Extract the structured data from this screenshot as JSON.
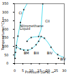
{
  "chart_data": {
    "type": "line",
    "title": "",
    "xlabel": "Pressure (GPa)",
    "ylabel": "Temperature (°C)",
    "xlim": [
      0,
      30
    ],
    "ylim": [
      0,
      350
    ],
    "xticks": [
      0,
      5,
      10,
      15,
      20,
      25,
      30
    ],
    "yticks": [
      0,
      50,
      100,
      150,
      200,
      250,
      300,
      350
    ],
    "series": [
      {
        "color": "#55DDEE",
        "x": [
          0.0,
          0.5,
          1.0,
          2.0,
          3.5,
          5.5,
          7.5
        ],
        "values": [
          30,
          65,
          105,
          160,
          240,
          315,
          350
        ]
      },
      {
        "color": "#55DDEE",
        "x": [
          7.5,
          8.5,
          10.0,
          12.0,
          14.5,
          16.0,
          17.0
        ],
        "values": [
          130,
          143,
          152,
          156,
          158,
          200,
          350
        ]
      },
      {
        "color": "#55DDEE",
        "x": [
          1.0,
          2.0,
          3.5,
          5.0,
          6.5,
          8.0,
          9.5,
          11.0,
          13.0,
          14.5,
          16.0
        ],
        "values": [
          105,
          92,
          85,
          82,
          78,
          78,
          82,
          90,
          110,
          130,
          158
        ]
      },
      {
        "color": "#55DDEE",
        "x": [
          16.0,
          18.0,
          20.0,
          22.0,
          24.0,
          26.0,
          28.0,
          30.0
        ],
        "values": [
          158,
          148,
          125,
          95,
          68,
          52,
          42,
          35
        ]
      },
      {
        "type": "scatter",
        "marker": "square",
        "color": "#333333",
        "x": [
          0.3,
          0.5,
          1.0,
          2.0,
          3.5,
          5.5,
          1.0,
          3.5,
          5.5,
          8.0,
          10.5,
          13.0,
          14.5,
          16.0,
          7.5,
          10.0,
          14.5,
          17.0,
          18.0,
          22.0,
          26.0,
          30.0,
          26.5
        ],
        "values": [
          30,
          65,
          105,
          160,
          240,
          315,
          92,
          85,
          78,
          78,
          90,
          110,
          130,
          158,
          130,
          152,
          158,
          350,
          148,
          95,
          52,
          35,
          30
        ]
      }
    ],
    "annotations": [
      {
        "text": "CI",
        "x": 2.5,
        "y": 295
      },
      {
        "text": "CII",
        "x": 18.5,
        "y": 248
      },
      {
        "text": "Nitromethane",
        "x": 3.2,
        "y": 218
      },
      {
        "text": "Liquid",
        "x": 3.2,
        "y": 205
      },
      {
        "text": "BM",
        "x": 5.5,
        "y": 60
      },
      {
        "text": "BIII",
        "x": 11.5,
        "y": 60
      },
      {
        "text": "BIV",
        "x": 19.5,
        "y": 60
      },
      {
        "text": "BIV",
        "x": 27.5,
        "y": 24
      }
    ]
  }
}
